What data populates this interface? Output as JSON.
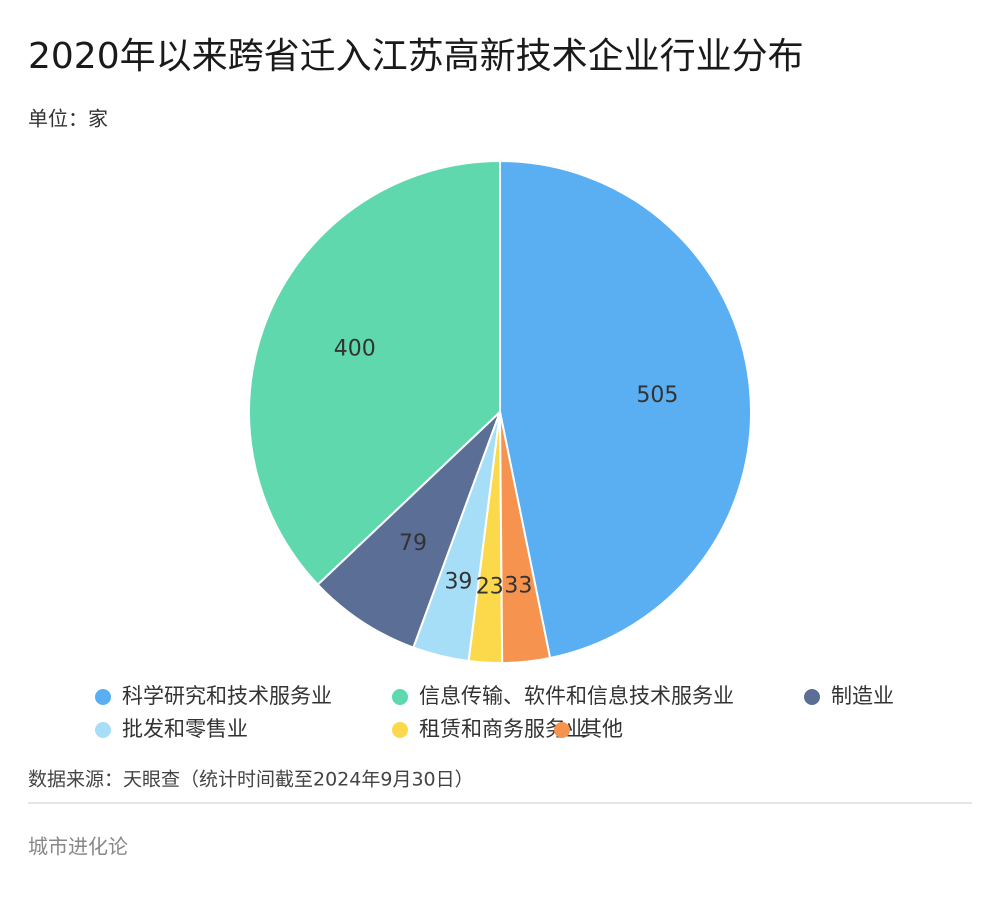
{
  "chart_data": {
    "type": "pie",
    "title": "2020年以来跨省迁入江苏高新技术企业行业分布",
    "subtitle": "单位：家",
    "categories": [
      "科学研究和技术服务业",
      "信息传输、软件和信息技术服务业",
      "制造业",
      "批发和零售业",
      "租赁和商务服务业",
      "其他"
    ],
    "values": [
      505,
      400,
      79,
      39,
      23,
      33
    ],
    "colors": [
      "#5aaef2",
      "#5fd8ae",
      "#5a6e96",
      "#a6def8",
      "#fbd94a",
      "#f6934f"
    ],
    "source": "数据来源：天眼查（统计时间截至2024年9月30日）"
  },
  "footer": {
    "brand": "城市进化论"
  }
}
